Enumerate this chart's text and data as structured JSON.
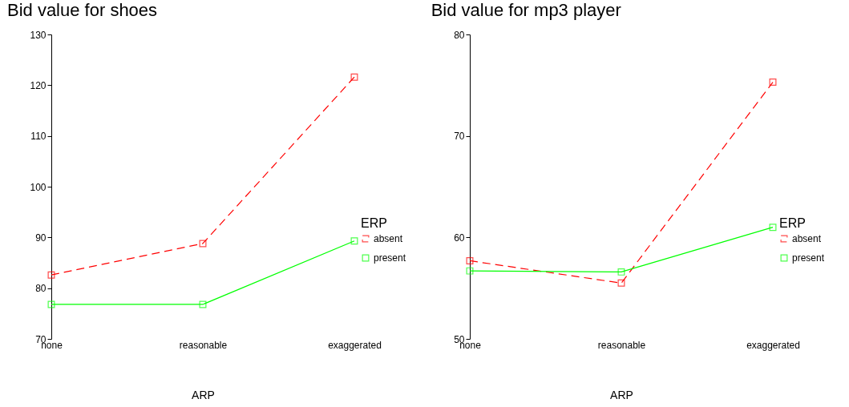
{
  "chart_data": [
    {
      "type": "line",
      "title": "Bid value for shoes",
      "xlabel": "ARP",
      "legend_title": "ERP",
      "categories": [
        "none",
        "reasonable",
        "exaggerated"
      ],
      "ylim": [
        70,
        130
      ],
      "yticks": [
        70,
        80,
        90,
        100,
        110,
        120,
        130
      ],
      "grid": false,
      "legend": "bottom right",
      "marker": "square",
      "series": [
        {
          "name": "absent",
          "color": "#ff0000",
          "line_style": "dashed",
          "values": [
            82.6,
            88.8,
            121.6
          ]
        },
        {
          "name": "present",
          "color": "#00ff00",
          "line_style": "solid",
          "values": [
            76.8,
            76.8,
            89.3
          ]
        }
      ]
    },
    {
      "type": "line",
      "title": "Bid value for mp3 player",
      "xlabel": "ARP",
      "legend_title": "ERP",
      "categories": [
        "none",
        "reasonable",
        "exaggerated"
      ],
      "ylim": [
        50,
        80
      ],
      "yticks": [
        50,
        60,
        70,
        80
      ],
      "grid": false,
      "legend": "bottom right",
      "marker": "square",
      "series": [
        {
          "name": "absent",
          "color": "#ff0000",
          "line_style": "dashed",
          "values": [
            57.7,
            55.5,
            75.3
          ]
        },
        {
          "name": "present",
          "color": "#00ff00",
          "line_style": "solid",
          "values": [
            56.7,
            56.6,
            61.0
          ]
        }
      ]
    }
  ]
}
